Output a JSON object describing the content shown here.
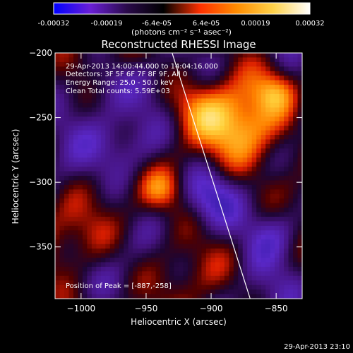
{
  "colorbar": {
    "colors": [
      "#0000ff",
      "#6a1fd6",
      "#2a0a4a",
      "#000000",
      "#ff3000",
      "#ff8c00",
      "#ffd24a",
      "#ffffff"
    ],
    "tick_labels": [
      "-0.00032",
      "-0.00019",
      "-6.4e-05",
      "6.4e-05",
      "0.00019",
      "0.00032"
    ],
    "units_label": "(photons cm⁻² s⁻¹ asec⁻²)"
  },
  "chart_data": {
    "type": "heatmap",
    "title": "Reconstructed RHESSI Image",
    "xlabel": "Heliocentric X (arcsec)",
    "ylabel": "Heliocentric Y (arcsec)",
    "xlim": [
      -1020,
      -830
    ],
    "ylim": [
      -390,
      -200
    ],
    "x_ticks": [
      -1000,
      -950,
      -900,
      -850
    ],
    "y_ticks": [
      -200,
      -250,
      -300,
      -350
    ],
    "x_tick_labels": [
      "−1000",
      "−950",
      "−900",
      "−850"
    ],
    "y_tick_labels": [
      "−200",
      "−250",
      "−300",
      "−350"
    ],
    "limb_line": [
      [
        -930,
        -200
      ],
      [
        -870,
        -390
      ]
    ],
    "info_lines": [
      "29-Apr-2013 14:00:44.000 to 14:04:16.000",
      "Detectors: 3F 5F 6F 7F 8F 9F, All 0",
      "Energy Range: 25.0 - 50.0 keV",
      "Clean     Total counts: 5.59E+03"
    ],
    "peak_label": "Position of Peak = [-887,-258]",
    "peak": [
      -887,
      -258
    ]
  },
  "footer": {
    "timestamp": "29-Apr-2013 23:10"
  }
}
